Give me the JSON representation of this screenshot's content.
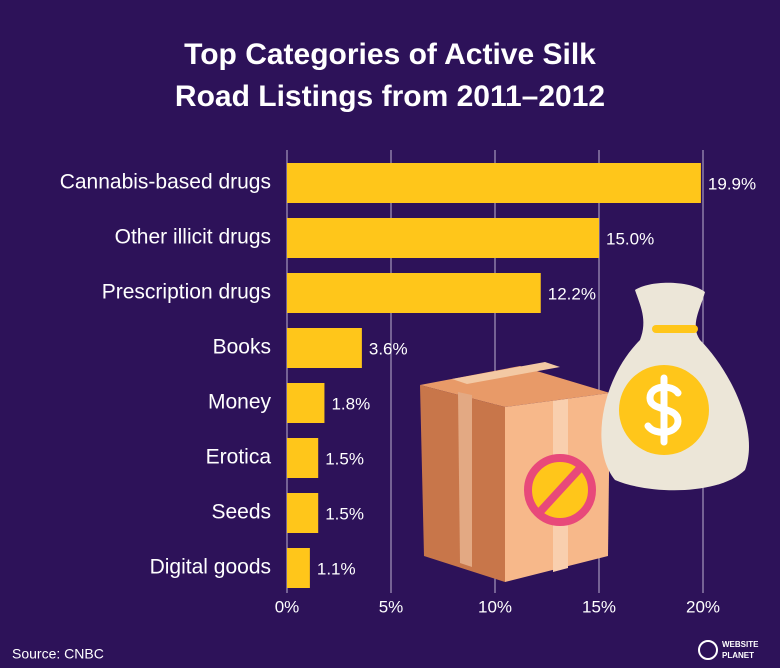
{
  "chart_data": {
    "type": "hbar",
    "title": "Top Categories of Active Silk Road Listings from 2011–2012",
    "categories": [
      "Cannabis-based drugs",
      "Other illicit drugs",
      "Prescription drugs",
      "Books",
      "Money",
      "Erotica",
      "Seeds",
      "Digital goods"
    ],
    "values": [
      19.9,
      15.0,
      12.2,
      3.6,
      1.8,
      1.5,
      1.5,
      1.1
    ],
    "value_labels": [
      "19.9%",
      "15.0%",
      "12.2%",
      "3.6%",
      "1.8%",
      "1.5%",
      "1.5%",
      "1.1%"
    ],
    "color": "#ffc61a",
    "xlim": [
      0,
      20
    ],
    "xticks": [
      {
        "value": 0,
        "label": "0%"
      },
      {
        "value": 5,
        "label": "5%"
      },
      {
        "value": 10,
        "label": "10%"
      },
      {
        "value": 15,
        "label": "15%"
      },
      {
        "value": 20,
        "label": "20%"
      }
    ],
    "grid": true
  },
  "source": "Source: CNBC",
  "logo": [
    "WEBSITE",
    "PLANET"
  ]
}
